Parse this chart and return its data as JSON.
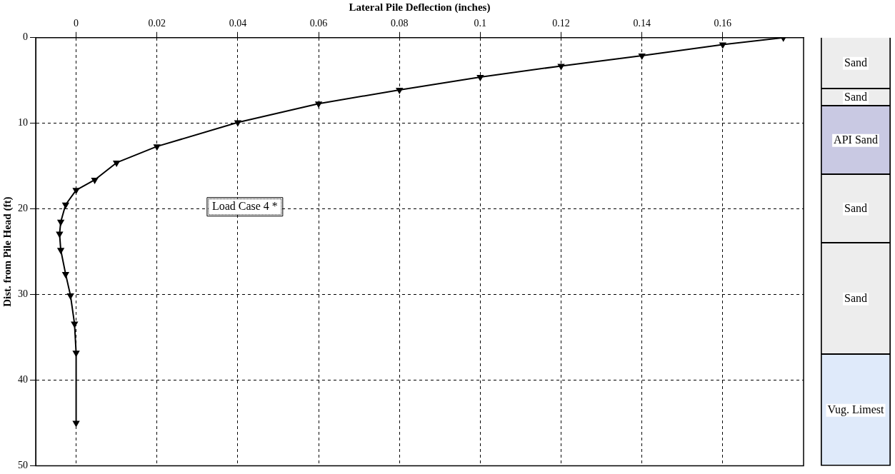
{
  "chart_data": [
    {
      "type": "line",
      "xlabel": "Lateral Pile Deflection (inches)",
      "ylabel": "Dist. from Pile Head (ft)",
      "xlim": [
        -0.01,
        0.18
      ],
      "xticks": [
        0,
        0.02,
        0.04,
        0.06,
        0.08,
        0.1,
        0.12,
        0.14,
        0.16
      ],
      "ylim": [
        50,
        0
      ],
      "yticks": [
        0,
        10,
        20,
        30,
        40,
        50
      ],
      "grid": true,
      "marker": "triangle",
      "line_style": "solid",
      "series": [
        {
          "color": "#000000",
          "x": [
            0.175,
            0.16,
            0.14,
            0.12,
            0.1,
            0.08,
            0.06,
            0.04,
            0.02,
            0.01,
            0.0046,
            0,
            -0.0026,
            -0.0038,
            -0.0041,
            -0.0038,
            -0.0026,
            -0.0014,
            -0.0004,
            0,
            0
          ],
          "values": [
            0,
            0.8,
            2.1,
            3.3,
            4.6,
            6.1,
            7.7,
            9.9,
            12.7,
            14.6,
            16.6,
            17.8,
            19.5,
            21.5,
            22.9,
            24.8,
            27.6,
            30.1,
            33.4,
            36.8,
            45
          ]
        }
      ],
      "annotations": [
        "Load Case 4 *"
      ]
    },
    {
      "type": "bar",
      "stacked": true,
      "categories": [
        null
      ],
      "ylim": [
        50,
        0
      ],
      "tick_labels": false,
      "series": [
        {
          "name": "Sand",
          "color": "#ededed",
          "values": [
            6
          ]
        },
        {
          "name": "Sand",
          "color": "#ededed",
          "values": [
            2
          ]
        },
        {
          "name": "API Sand",
          "color": "#c9c9e3",
          "values": [
            8
          ]
        },
        {
          "name": "Sand",
          "color": "#ededed",
          "values": [
            8
          ]
        },
        {
          "name": "Sand",
          "color": "#ededed",
          "values": [
            13
          ]
        },
        {
          "name": "Vug. Limest",
          "color": "#dfeafa",
          "values": [
            13
          ]
        }
      ]
    }
  ]
}
